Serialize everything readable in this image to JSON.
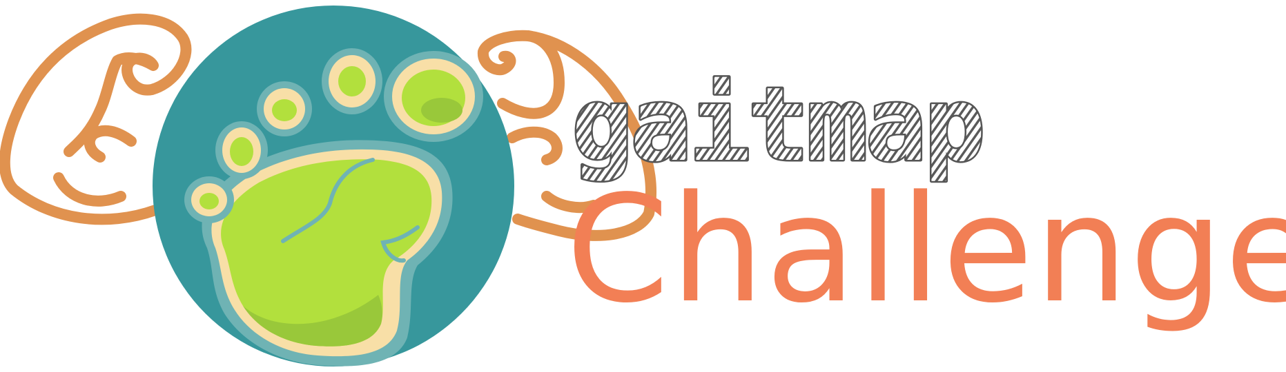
{
  "logo": {
    "line1": "gaitmap",
    "line2": "Challenges",
    "icon": "flexing-globe-footprint-icon"
  },
  "colors": {
    "arms": "#e0924f",
    "globe": "#37979c",
    "globe_ring": "#6fb3b4",
    "sole_outline": "#f8dfa7",
    "sole": "#b2e03d",
    "sole_shadow": "#99c83a",
    "gaitmap_text": "#555555",
    "challenges_text": "#f27f55"
  }
}
